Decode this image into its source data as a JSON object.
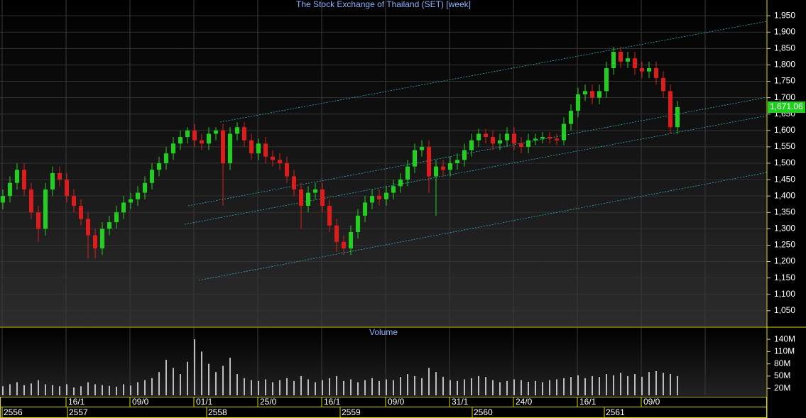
{
  "chart_data": [
    {
      "type": "candlestick",
      "title": "The Stock Exchange of Thailand (SET) [week]",
      "open": [
        1380,
        1400,
        1440,
        1480,
        1420,
        1350,
        1300,
        1420,
        1470,
        1450,
        1400,
        1370,
        1330,
        1280,
        1240,
        1300,
        1320,
        1350,
        1380,
        1390,
        1410,
        1440,
        1480,
        1500,
        1530,
        1560,
        1580,
        1600,
        1570,
        1560,
        1590,
        1600,
        1500,
        1590,
        1610,
        1570,
        1530,
        1560,
        1520,
        1510,
        1500,
        1460,
        1420,
        1370,
        1410,
        1420,
        1370,
        1310,
        1260,
        1240,
        1290,
        1340,
        1380,
        1400,
        1390,
        1410,
        1430,
        1450,
        1490,
        1540,
        1550,
        1460,
        1490,
        1480,
        1500,
        1510,
        1540,
        1570,
        1590,
        1580,
        1560,
        1570,
        1590,
        1560,
        1550,
        1570,
        1575,
        1580,
        1575,
        1570,
        1620,
        1660,
        1710,
        1720,
        1700,
        1720,
        1790,
        1840,
        1810,
        1820,
        1790,
        1780,
        1790,
        1760,
        1720,
        1610
      ],
      "high": [
        1420,
        1460,
        1500,
        1500,
        1440,
        1370,
        1440,
        1490,
        1490,
        1470,
        1420,
        1390,
        1350,
        1300,
        1320,
        1340,
        1370,
        1400,
        1410,
        1430,
        1460,
        1500,
        1520,
        1550,
        1580,
        1600,
        1610,
        1620,
        1590,
        1610,
        1610,
        1620,
        1610,
        1625,
        1625,
        1590,
        1575,
        1580,
        1540,
        1530,
        1520,
        1480,
        1440,
        1430,
        1440,
        1440,
        1390,
        1330,
        1280,
        1310,
        1360,
        1400,
        1420,
        1420,
        1430,
        1450,
        1470,
        1510,
        1560,
        1570,
        1570,
        1510,
        1510,
        1520,
        1530,
        1560,
        1590,
        1605,
        1605,
        1600,
        1590,
        1610,
        1610,
        1580,
        1590,
        1590,
        1595,
        1595,
        1590,
        1640,
        1680,
        1730,
        1740,
        1740,
        1740,
        1810,
        1855,
        1855,
        1840,
        1840,
        1810,
        1810,
        1810,
        1780,
        1740,
        1690
      ],
      "low": [
        1360,
        1380,
        1420,
        1400,
        1330,
        1260,
        1280,
        1400,
        1430,
        1380,
        1350,
        1310,
        1210,
        1210,
        1220,
        1280,
        1300,
        1330,
        1360,
        1370,
        1390,
        1420,
        1460,
        1480,
        1510,
        1540,
        1560,
        1550,
        1540,
        1540,
        1570,
        1370,
        1480,
        1570,
        1550,
        1510,
        1510,
        1500,
        1490,
        1480,
        1440,
        1400,
        1300,
        1350,
        1390,
        1350,
        1290,
        1230,
        1220,
        1220,
        1270,
        1320,
        1360,
        1370,
        1370,
        1390,
        1410,
        1430,
        1470,
        1520,
        1410,
        1340,
        1460,
        1460,
        1480,
        1490,
        1520,
        1550,
        1560,
        1540,
        1540,
        1550,
        1540,
        1530,
        1530,
        1555,
        1560,
        1560,
        1555,
        1555,
        1600,
        1640,
        1690,
        1680,
        1680,
        1700,
        1770,
        1790,
        1790,
        1770,
        1760,
        1760,
        1740,
        1700,
        1590,
        1590
      ],
      "close": [
        1400,
        1440,
        1480,
        1420,
        1350,
        1300,
        1420,
        1470,
        1450,
        1400,
        1370,
        1330,
        1280,
        1240,
        1300,
        1320,
        1350,
        1380,
        1390,
        1410,
        1440,
        1480,
        1500,
        1530,
        1560,
        1580,
        1600,
        1570,
        1560,
        1590,
        1600,
        1500,
        1590,
        1610,
        1570,
        1530,
        1560,
        1520,
        1510,
        1500,
        1460,
        1420,
        1370,
        1410,
        1420,
        1370,
        1310,
        1260,
        1240,
        1290,
        1340,
        1380,
        1400,
        1390,
        1410,
        1430,
        1450,
        1490,
        1540,
        1550,
        1460,
        1490,
        1480,
        1500,
        1510,
        1540,
        1570,
        1590,
        1580,
        1560,
        1570,
        1590,
        1560,
        1550,
        1570,
        1575,
        1580,
        1575,
        1570,
        1620,
        1660,
        1710,
        1720,
        1700,
        1720,
        1790,
        1840,
        1810,
        1820,
        1790,
        1780,
        1790,
        1760,
        1720,
        1610,
        1671
      ],
      "up_color": "#1fd01f",
      "down_color": "#e01b1b",
      "last_price": {
        "value": 1671.06,
        "label": "1,671.06"
      },
      "ylim": [
        1002,
        1998
      ],
      "yticks": [
        {
          "value": 1050,
          "label": "1,050"
        },
        {
          "value": 1100,
          "label": "1,100"
        },
        {
          "value": 1150,
          "label": "1,150"
        },
        {
          "value": 1200,
          "label": "1,200"
        },
        {
          "value": 1250,
          "label": "1,250"
        },
        {
          "value": 1300,
          "label": "1,300"
        },
        {
          "value": 1350,
          "label": "1,350"
        },
        {
          "value": 1400,
          "label": "1,400"
        },
        {
          "value": 1450,
          "label": "1,450"
        },
        {
          "value": 1500,
          "label": "1,500"
        },
        {
          "value": 1550,
          "label": "1,550"
        },
        {
          "value": 1600,
          "label": "1,600"
        },
        {
          "value": 1650,
          "label": "1,650"
        },
        {
          "value": 1700,
          "label": "1,700"
        },
        {
          "value": 1750,
          "label": "1,750"
        },
        {
          "value": 1800,
          "label": "1,800"
        },
        {
          "value": 1850,
          "label": "1,850"
        },
        {
          "value": 1900,
          "label": "1,900"
        },
        {
          "value": 1950,
          "label": "1,950"
        }
      ],
      "grid": true
    },
    {
      "type": "bar",
      "title": "Volume",
      "values": [
        25,
        30,
        35,
        28,
        32,
        40,
        30,
        28,
        25,
        30,
        22,
        25,
        35,
        30,
        28,
        26,
        24,
        30,
        27,
        35,
        40,
        45,
        60,
        90,
        70,
        55,
        85,
        140,
        110,
        80,
        60,
        75,
        95,
        55,
        45,
        40,
        38,
        42,
        35,
        40,
        45,
        38,
        50,
        42,
        35,
        40,
        45,
        50,
        38,
        42,
        35,
        40,
        45,
        38,
        42,
        40,
        48,
        55,
        50,
        45,
        70,
        60,
        48,
        40,
        38,
        42,
        45,
        50,
        48,
        40,
        35,
        38,
        42,
        40,
        36,
        38,
        35,
        40,
        42,
        45,
        48,
        52,
        45,
        50,
        48,
        55,
        52,
        58,
        50,
        55,
        48,
        60,
        62,
        58,
        55,
        50
      ],
      "color": "#bdbdbd",
      "ylim": [
        3,
        168
      ],
      "yticks": [
        {
          "value": 20,
          "label": "20M"
        },
        {
          "value": 50,
          "label": "50M"
        },
        {
          "value": 80,
          "label": "80M"
        },
        {
          "value": 110,
          "label": "110M"
        },
        {
          "value": 140,
          "label": "140M"
        }
      ],
      "grid": true
    }
  ],
  "date_axis": {
    "dates": [
      "16/1",
      "09/0",
      "01/1",
      "25/0",
      "16/1",
      "09/0",
      "31/1",
      "24/0",
      "16/1",
      "09/0"
    ],
    "years": [
      "2556",
      "2557",
      "2558",
      "2559",
      "2560",
      "2561"
    ]
  }
}
